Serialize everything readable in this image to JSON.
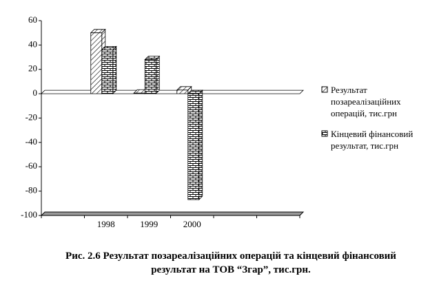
{
  "chart_data": {
    "type": "bar3d",
    "title": "Рис. 2.6  Результат позареалізаційних операцій та кінцевий фінансовий результат на ТОВ “Згар”, тис.грн.",
    "categories": [
      null,
      "1998",
      "1999",
      "2000",
      null,
      null
    ],
    "series": [
      {
        "name": "Результат позареалізаційних операцій, тис.грн",
        "color": "#000000",
        "pattern": "diagonal",
        "values": [
          null,
          50,
          0.5,
          3,
          null,
          null
        ]
      },
      {
        "name": "Кінцевий фінансовий результат, тис.грн",
        "color": "#000000",
        "pattern": "brick",
        "values": [
          null,
          36,
          28,
          -87,
          null,
          null
        ]
      }
    ],
    "ylim": [
      -100,
      60
    ],
    "yticks": [
      60,
      40,
      20,
      0,
      -20,
      -40,
      -60,
      -80,
      -100
    ],
    "grid": false,
    "legend": "right"
  }
}
